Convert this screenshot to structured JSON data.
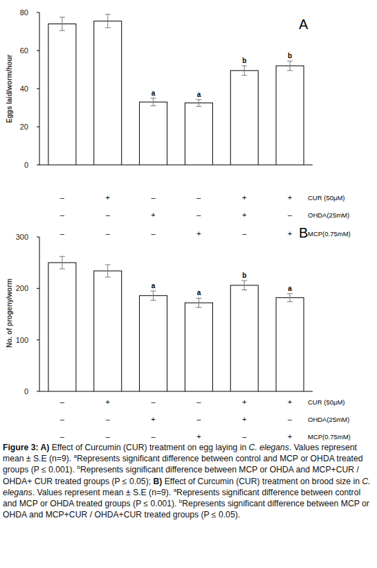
{
  "chart_data": [
    {
      "type": "bar",
      "panel_label": "A",
      "y_label": "Eggs laid/worm/hour",
      "categories": [
        null,
        null,
        null,
        null,
        null,
        null
      ],
      "values": [
        74,
        75.5,
        33,
        32.5,
        49.5,
        52
      ],
      "errors": [
        3.5,
        3.5,
        2,
        1.8,
        2.5,
        2.5
      ],
      "significance": [
        null,
        null,
        "a",
        "a",
        "b",
        "b"
      ],
      "color": "#ffffff",
      "ylim": [
        0,
        80
      ],
      "yticks": [
        0,
        20,
        40,
        60,
        80
      ],
      "grid": false,
      "treatments": [
        {
          "name": "CUR (50µM)",
          "marks": [
            "–",
            "+",
            "–",
            "–",
            "+",
            "+"
          ]
        },
        {
          "name": "OHDA(25mM)",
          "marks": [
            "–",
            "–",
            "+",
            "–",
            "+",
            "–"
          ]
        },
        {
          "name": "MCP(0.75mM)",
          "marks": [
            "–",
            "–",
            "–",
            "+",
            "–",
            "+"
          ]
        }
      ]
    },
    {
      "type": "bar",
      "panel_label": "B",
      "y_label": "No. of progeny/worm",
      "categories": [
        null,
        null,
        null,
        null,
        null,
        null
      ],
      "values": [
        250,
        234,
        186,
        172,
        206,
        182
      ],
      "errors": [
        12,
        12,
        9,
        9,
        9,
        8
      ],
      "significance": [
        null,
        null,
        "a",
        "a",
        "b",
        "a"
      ],
      "color": "#ffffff",
      "ylim": [
        0,
        300
      ],
      "yticks": [
        0,
        100,
        200,
        300
      ],
      "grid": false,
      "treatments": [
        {
          "name": "CUR (50µM)",
          "marks": [
            "–",
            "+",
            "–",
            "–",
            "+",
            "+"
          ]
        },
        {
          "name": "OHDA(25mM)",
          "marks": [
            "–",
            "–",
            "+",
            "–",
            "+",
            "–"
          ]
        },
        {
          "name": "MCP(0.75mM)",
          "marks": [
            "–",
            "–",
            "–",
            "+",
            "–",
            "+"
          ]
        }
      ]
    }
  ],
  "caption": [
    {
      "text": "Figure 3: A)",
      "style": "bold"
    },
    {
      "text": " Effect of Curcumin (CUR) treatment on egg laying in ",
      "style": "normal"
    },
    {
      "text": "C. elegans",
      "style": "italic"
    },
    {
      "text": ". Values represent mean ± S.E (n=9). ",
      "style": "normal"
    },
    {
      "text": "a",
      "style": "sup"
    },
    {
      "text": "Represents significant difference between control and MCP or OHDA treated groups (P ≤ 0.001). ",
      "style": "normal"
    },
    {
      "text": "b",
      "style": "sup"
    },
    {
      "text": "Represents significant difference between MCP or OHDA and MCP+CUR / OHDA+ CUR treated groups (P ≤ 0.05); ",
      "style": "normal"
    },
    {
      "text": "B)",
      "style": "bold"
    },
    {
      "text": " Effect of Curcumin (CUR) treatment on brood size in ",
      "style": "normal"
    },
    {
      "text": "C. elegans",
      "style": "italic"
    },
    {
      "text": ". Values represent mean ± S.E (n=9). ",
      "style": "normal"
    },
    {
      "text": "a",
      "style": "sup"
    },
    {
      "text": "Represents significant difference between control and MCP or OHDA treated groups (P ≤ 0.001). ",
      "style": "normal"
    },
    {
      "text": "b",
      "style": "sup"
    },
    {
      "text": "Represents significant difference between MCP or OHDA and MCP+CUR / OHDA+CUR treated groups (P ≤ 0.05).",
      "style": "normal"
    }
  ]
}
